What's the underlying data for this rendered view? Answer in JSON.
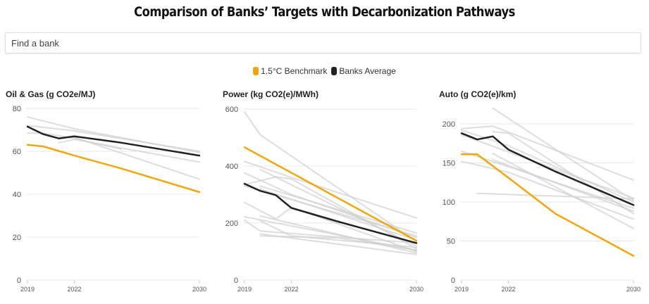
{
  "page": {
    "title": "Comparison of Banks’ Targets with Decarbonization Pathways",
    "search": {
      "placeholder": "Find a bank",
      "value": ""
    },
    "legend": [
      {
        "label": "1.5°C Benchmark",
        "color": "#f0a70f"
      },
      {
        "label": "Banks Average",
        "color": "#222222"
      }
    ]
  },
  "colors": {
    "benchmark": "#f0a70f",
    "average": "#222222",
    "bank": "#cfcfcf",
    "grid": "#e8e8e8",
    "axis_text": "#555555"
  },
  "chart_data": [
    {
      "type": "line",
      "title": "Oil & Gas (g CO2e/MJ)",
      "xlabel": "",
      "ylabel": "g CO2e/MJ",
      "x_ticks": [
        2019,
        2022,
        2030
      ],
      "xlim": [
        2019,
        2030
      ],
      "y_ticks": [
        0,
        20,
        40,
        60,
        80
      ],
      "ylim": [
        0,
        80
      ],
      "grid": true,
      "legend": "top-center",
      "series": [
        {
          "name": "1.5°C Benchmark",
          "role": "benchmark",
          "points": [
            [
              2019,
              63
            ],
            [
              2020,
              62.3
            ],
            [
              2022,
              58
            ],
            [
              2025,
              52
            ],
            [
              2030,
              41
            ]
          ]
        },
        {
          "name": "Banks Average",
          "role": "average",
          "points": [
            [
              2019,
              71.5
            ],
            [
              2020,
              68
            ],
            [
              2021,
              66
            ],
            [
              2022,
              67
            ],
            [
              2025,
              64
            ],
            [
              2030,
              58
            ]
          ]
        },
        {
          "name": "Bank",
          "role": "bank",
          "points": [
            [
              2019,
              76
            ],
            [
              2022,
              70.5
            ],
            [
              2030,
              59.5
            ]
          ]
        },
        {
          "name": "Bank",
          "role": "bank",
          "points": [
            [
              2019,
              72
            ],
            [
              2022,
              69.5
            ],
            [
              2030,
              60
            ]
          ]
        },
        {
          "name": "Bank",
          "role": "bank",
          "points": [
            [
              2019,
              68.5
            ],
            [
              2020,
              68.5
            ],
            [
              2022,
              66
            ],
            [
              2025,
              61
            ]
          ]
        },
        {
          "name": "Bank",
          "role": "bank",
          "points": [
            [
              2021,
              64
            ],
            [
              2022,
              65.5
            ],
            [
              2030,
              55
            ]
          ]
        },
        {
          "name": "Bank",
          "role": "bank",
          "points": [
            [
              2022,
              66.5
            ],
            [
              2030,
              47
            ]
          ]
        }
      ]
    },
    {
      "type": "line",
      "title": "Power (kg CO2(e)/MWh)",
      "xlabel": "",
      "ylabel": "kg CO2(e)/MWh",
      "x_ticks": [
        2019,
        2022,
        2030
      ],
      "xlim": [
        2019,
        2030
      ],
      "y_ticks": [
        0,
        200,
        400,
        600
      ],
      "ylim": [
        0,
        600
      ],
      "grid": true,
      "series": [
        {
          "name": "1.5°C Benchmark",
          "role": "benchmark",
          "points": [
            [
              2019,
              466
            ],
            [
              2030,
              138
            ]
          ]
        },
        {
          "name": "Banks Average",
          "role": "average",
          "points": [
            [
              2019,
              338
            ],
            [
              2020,
              313
            ],
            [
              2021,
              298
            ],
            [
              2022,
              253
            ],
            [
              2025,
              205
            ],
            [
              2030,
              130
            ]
          ]
        },
        {
          "name": "Bank",
          "role": "bank",
          "points": [
            [
              2019,
              590
            ],
            [
              2020,
              510
            ],
            [
              2030,
              135
            ]
          ]
        },
        {
          "name": "Bank",
          "role": "bank",
          "points": [
            [
              2019,
              416
            ],
            [
              2022,
              360
            ],
            [
              2030,
              218
            ]
          ]
        },
        {
          "name": "Bank",
          "role": "bank",
          "points": [
            [
              2019,
              376
            ],
            [
              2022,
              300
            ],
            [
              2030,
              150
            ]
          ]
        },
        {
          "name": "Bank",
          "role": "bank",
          "points": [
            [
              2019,
              335
            ],
            [
              2021,
              362
            ],
            [
              2022,
              355
            ],
            [
              2030,
              110
            ]
          ]
        },
        {
          "name": "Bank",
          "role": "bank",
          "points": [
            [
              2020,
              388
            ],
            [
              2030,
              120
            ]
          ]
        },
        {
          "name": "Bank",
          "role": "bank",
          "points": [
            [
              2020,
              330
            ],
            [
              2030,
              165
            ]
          ]
        },
        {
          "name": "Bank",
          "role": "bank",
          "points": [
            [
              2019,
              330
            ],
            [
              2030,
              155
            ]
          ]
        },
        {
          "name": "Bank",
          "role": "bank",
          "points": [
            [
              2020,
              320
            ],
            [
              2030,
              140
            ]
          ]
        },
        {
          "name": "Bank",
          "role": "bank",
          "points": [
            [
              2019,
              272
            ],
            [
              2021,
              215
            ],
            [
              2022,
              255
            ],
            [
              2030,
              100
            ]
          ]
        },
        {
          "name": "Bank",
          "role": "bank",
          "points": [
            [
              2019,
              222
            ],
            [
              2022,
              190
            ],
            [
              2030,
              105
            ]
          ]
        },
        {
          "name": "Bank",
          "role": "bank",
          "points": [
            [
              2019,
              210
            ],
            [
              2020,
              172
            ],
            [
              2030,
              130
            ]
          ]
        },
        {
          "name": "Bank",
          "role": "bank",
          "points": [
            [
              2020,
              225
            ],
            [
              2030,
              95
            ]
          ]
        },
        {
          "name": "Bank",
          "role": "bank",
          "points": [
            [
              2020,
              208
            ],
            [
              2022,
              155
            ],
            [
              2030,
              115
            ]
          ]
        },
        {
          "name": "Bank",
          "role": "bank",
          "points": [
            [
              2020,
              155
            ],
            [
              2025,
              148
            ],
            [
              2030,
              105
            ]
          ]
        },
        {
          "name": "Bank",
          "role": "bank",
          "points": [
            [
              2020,
              162
            ],
            [
              2030,
              90
            ]
          ]
        }
      ]
    },
    {
      "type": "line",
      "title": "Auto (g CO2(e)/km)",
      "xlabel": "",
      "ylabel": "g CO2(e)/km",
      "x_ticks": [
        2019,
        2022,
        2030
      ],
      "xlim": [
        2019,
        2030
      ],
      "y_ticks": [
        0,
        50,
        100,
        150,
        200
      ],
      "ylim": [
        0,
        200
      ],
      "grid": true,
      "series": [
        {
          "name": "1.5°C Benchmark",
          "role": "benchmark",
          "points": [
            [
              2019,
              161
            ],
            [
              2020,
              161
            ],
            [
              2022,
              131
            ],
            [
              2025,
              85
            ],
            [
              2030,
              31
            ]
          ]
        },
        {
          "name": "Banks Average",
          "role": "average",
          "points": [
            [
              2019,
              188
            ],
            [
              2020,
              180
            ],
            [
              2021,
              184
            ],
            [
              2022,
              167
            ],
            [
              2025,
              139
            ],
            [
              2030,
              96
            ]
          ]
        },
        {
          "name": "Bank",
          "role": "bank",
          "points": [
            [
              2021,
              220
            ],
            [
              2030,
              102
            ]
          ]
        },
        {
          "name": "Bank",
          "role": "bank",
          "points": [
            [
              2019,
              194
            ],
            [
              2021,
              197
            ],
            [
              2030,
              128
            ]
          ]
        },
        {
          "name": "Bank",
          "role": "bank",
          "points": [
            [
              2019,
              192
            ],
            [
              2022,
              172
            ],
            [
              2030,
              100
            ]
          ]
        },
        {
          "name": "Bank",
          "role": "bank",
          "points": [
            [
              2019,
              186
            ],
            [
              2030,
              105
            ]
          ]
        },
        {
          "name": "Bank",
          "role": "bank",
          "points": [
            [
              2021,
              190
            ],
            [
              2022,
              188
            ],
            [
              2030,
              85
            ]
          ]
        },
        {
          "name": "Bank",
          "role": "bank",
          "points": [
            [
              2019,
              165
            ],
            [
              2030,
              92
            ]
          ]
        },
        {
          "name": "Bank",
          "role": "bank",
          "points": [
            [
              2021,
              162
            ],
            [
              2030,
              66
            ]
          ]
        },
        {
          "name": "Bank",
          "role": "bank",
          "points": [
            [
              2019,
              152
            ],
            [
              2022,
              138
            ],
            [
              2030,
              78
            ]
          ]
        },
        {
          "name": "Bank",
          "role": "bank",
          "points": [
            [
              2021,
              154
            ],
            [
              2030,
              88
            ]
          ]
        },
        {
          "name": "Bank",
          "role": "bank",
          "points": [
            [
              2020,
              111
            ],
            [
              2030,
              104
            ]
          ]
        }
      ]
    }
  ]
}
